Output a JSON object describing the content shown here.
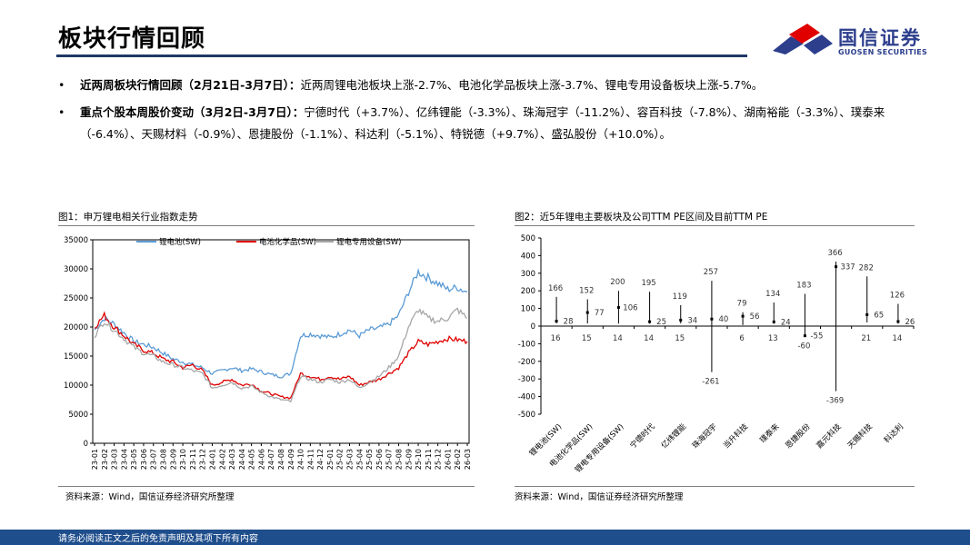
{
  "header": {
    "title": "板块行情回顾",
    "logo_cn": "国信证券",
    "logo_en": "GUOSEN SECURITIES"
  },
  "bullets": [
    {
      "bold": "近两周板块行情回顾（2月21日-3月7日）：",
      "text": "近两周锂电池板块上涨-2.7%、电池化学品板块上涨-3.7%、锂电专用设备板块上涨-5.7%。"
    },
    {
      "bold": "重点个股本周股价变动（3月2日-3月7日）：",
      "text": "宁德时代（+3.7%）、亿纬锂能（-3.3%）、珠海冠宇（-11.2%）、容百科技（-7.8%）、湖南裕能（-3.3%）、璞泰来（-6.4%）、天赐材料（-0.9%）、恩捷股份（-1.1%）、科达利（-5.1%）、特锐德（+9.7%）、盛弘股份（+10.0%）。"
    }
  ],
  "fig1": {
    "title": "图1：申万锂电相关行业指数走势",
    "source": "资料来源：Wind，国信证券经济研究所整理"
  },
  "fig2": {
    "title": "图2：近5年锂电主要板块及公司TTM PE区间及目前TTM PE",
    "source": "资料来源：Wind，国信证券经济研究所整理"
  },
  "footer": {
    "text": "请务必阅读正文之后的免责声明及其项下所有内容"
  },
  "chart_data": [
    {
      "type": "line",
      "ylim": [
        0,
        35000
      ],
      "yticks": [
        0,
        5000,
        10000,
        15000,
        20000,
        25000,
        30000,
        35000
      ],
      "x": [
        "23-01",
        "23-02",
        "23-03",
        "23-04",
        "23-05",
        "23-06",
        "23-07",
        "23-08",
        "23-09",
        "23-10",
        "23-11",
        "23-12",
        "24-01",
        "24-02",
        "24-03",
        "24-04",
        "24-05",
        "24-06",
        "24-07",
        "24-08",
        "24-09",
        "24-10",
        "24-11",
        "24-12",
        "25-01",
        "25-02",
        "25-03",
        "25-04",
        "25-05",
        "25-06",
        "25-07",
        "25-08",
        "25-09",
        "25-10",
        "25-11",
        "25-12",
        "26-01",
        "26-02",
        "26-03"
      ],
      "legend_position": "top",
      "series": [
        {
          "name": "锂电池(SW)",
          "color": "#5b9bd5",
          "values": [
            19500,
            21500,
            20500,
            19000,
            17500,
            17000,
            16500,
            15500,
            14500,
            14000,
            13500,
            13000,
            12000,
            12500,
            13000,
            12500,
            12800,
            12300,
            11800,
            11500,
            12000,
            18500,
            18800,
            18500,
            18200,
            18800,
            19500,
            18500,
            19500,
            19800,
            20500,
            22000,
            26000,
            29500,
            28500,
            27500,
            26500,
            26800,
            26000
          ]
        },
        {
          "name": "电池化学品(SW)",
          "color": "#e00000",
          "values": [
            20000,
            22000,
            20000,
            18500,
            17000,
            16000,
            15500,
            14500,
            14000,
            13000,
            13500,
            12500,
            10000,
            10500,
            11000,
            10000,
            10200,
            9000,
            8500,
            8000,
            7800,
            12000,
            11500,
            11000,
            11500,
            11000,
            11500,
            10000,
            10500,
            11000,
            12000,
            13000,
            15500,
            17500,
            17000,
            17500,
            18000,
            17800,
            17500
          ]
        },
        {
          "name": "锂电专用设备(SW)",
          "color": "#a6a6a6",
          "values": [
            18500,
            21000,
            19500,
            18000,
            16500,
            15500,
            15000,
            14000,
            13500,
            13000,
            12500,
            12000,
            9500,
            10000,
            10500,
            9500,
            9800,
            8800,
            8000,
            7500,
            7200,
            11500,
            11000,
            10500,
            11000,
            10500,
            11000,
            9500,
            10500,
            11500,
            13000,
            15000,
            20000,
            23000,
            21500,
            21000,
            21500,
            23000,
            21500
          ]
        }
      ]
    },
    {
      "type": "bar",
      "ylim": [
        -500,
        500
      ],
      "yticks": [
        -500,
        -400,
        -300,
        -200,
        -100,
        0,
        100,
        200,
        300,
        400,
        500
      ],
      "categories": [
        "锂电池(SW)",
        "电池化学品(SW)",
        "锂电专用设备(SW)",
        "宁德时代",
        "亿纬锂能",
        "珠海冠宇",
        "当升科技",
        "璞泰来",
        "恩捷股份",
        "嘉元科技",
        "天赐科技",
        "科达利"
      ],
      "max": [
        166,
        152,
        200,
        195,
        119,
        257,
        79,
        134,
        183,
        366,
        282,
        126
      ],
      "min": [
        16,
        15,
        14,
        14,
        15,
        -261,
        6,
        13,
        -60,
        -369,
        21,
        14
      ],
      "current": [
        28,
        77,
        106,
        25,
        34,
        40,
        56,
        24,
        -55,
        337,
        65,
        26
      ]
    }
  ]
}
